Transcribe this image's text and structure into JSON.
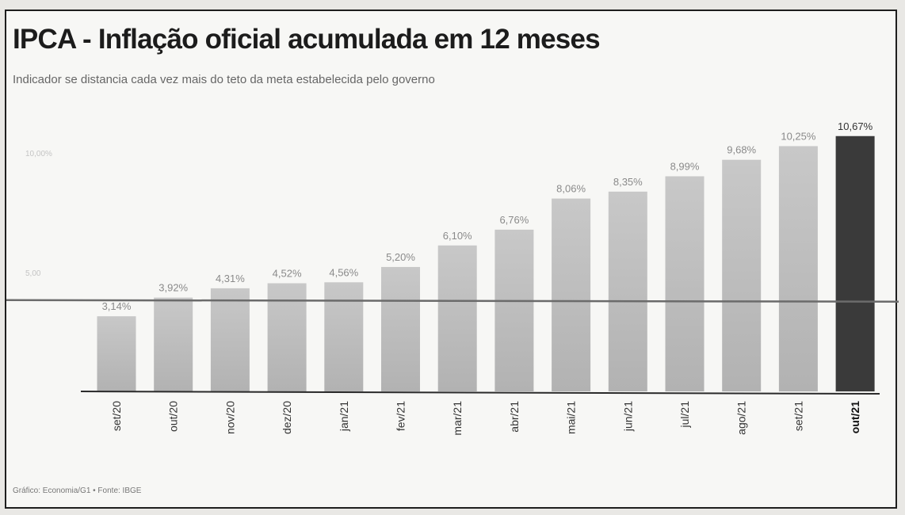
{
  "chart_data": {
    "type": "bar",
    "title": "IPCA - Inflação oficial acumulada em 12 meses",
    "subtitle": "Indicador se distancia cada vez mais do teto da meta estabelecida pelo governo",
    "source": "Gráfico: Economia/G1 • Fonte: IBGE",
    "categories": [
      "set/20",
      "out/20",
      "nov/20",
      "dez/20",
      "jan/21",
      "fev/21",
      "mar/21",
      "abr/21",
      "mai/21",
      "jun/21",
      "jul/21",
      "ago/21",
      "set/21",
      "out/21"
    ],
    "values": [
      3.14,
      3.92,
      4.31,
      4.52,
      4.56,
      5.2,
      6.1,
      6.76,
      8.06,
      8.35,
      8.99,
      9.68,
      10.25,
      10.67
    ],
    "value_labels": [
      "3,14%",
      "3,92%",
      "4,31%",
      "4,52%",
      "4,56%",
      "5,20%",
      "6,10%",
      "6,76%",
      "8,06%",
      "8,35%",
      "8,99%",
      "9,68%",
      "10,25%",
      "10,67%"
    ],
    "highlight_index": 13,
    "reference_lines": [
      {
        "value": 10,
        "label": "10,00%"
      },
      {
        "value": 5,
        "label": "5,00"
      }
    ],
    "target_line_value": 3.75,
    "ylim": [
      0,
      11
    ],
    "grid": false,
    "colors": {
      "bar": "#bdbdbd",
      "highlight": "#3a3a3a",
      "target_line": "#6b6b6b",
      "axis": "#2a2a2a"
    }
  }
}
